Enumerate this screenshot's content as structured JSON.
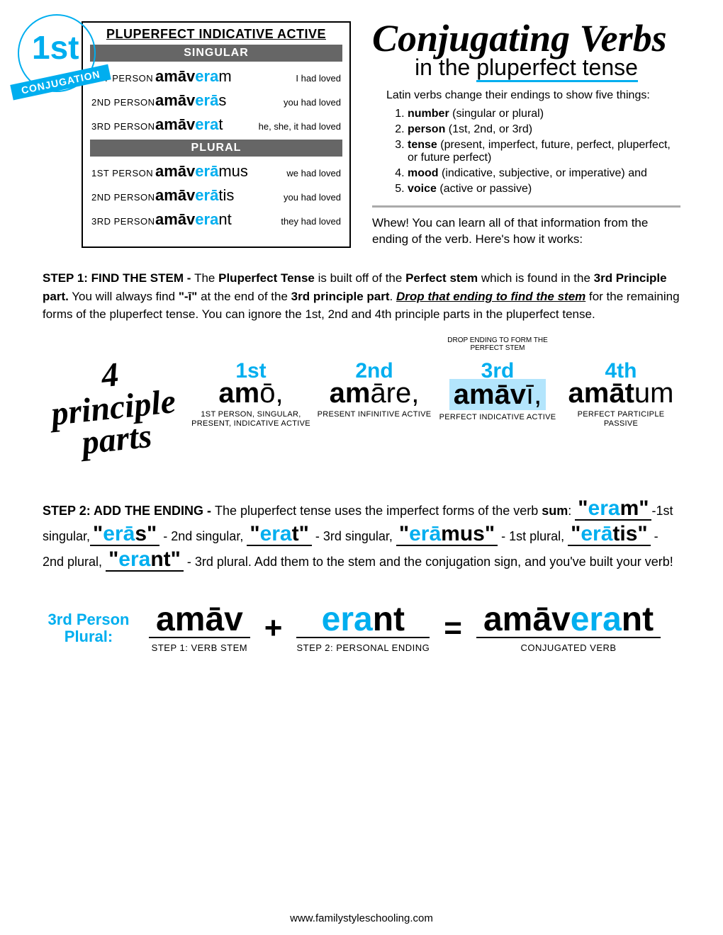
{
  "colors": {
    "accent": "#00aeef",
    "header_bg": "#666666",
    "highlight_bg": "#b3e5fc"
  },
  "badge": {
    "ord": "1st",
    "label": "CONJUGATION"
  },
  "table": {
    "title": "PLUPERFECT INDICATIVE ACTIVE",
    "singular_label": "SINGULAR",
    "plural_label": "PLURAL",
    "rows_singular": [
      {
        "person": "1ST PERSON",
        "stem": "amāv",
        "blue": "era",
        "end": "m",
        "trans": "I had loved"
      },
      {
        "person": "2ND PERSON",
        "stem": "amāv",
        "blue": "erā",
        "end": "s",
        "trans": "you had loved"
      },
      {
        "person": "3RD PERSON",
        "stem": "amāv",
        "blue": "era",
        "end": "t",
        "trans": "he, she, it had loved"
      }
    ],
    "rows_plural": [
      {
        "person": "1ST PERSON",
        "stem": "amāv",
        "blue": "erā",
        "end": "mus",
        "trans": "we had loved"
      },
      {
        "person": "2ND PERSON",
        "stem": "amāv",
        "blue": "erā",
        "end": "tis",
        "trans": "you had loved"
      },
      {
        "person": "3RD PERSON",
        "stem": "amāv",
        "blue": "era",
        "end": "nt",
        "trans": "they had loved"
      }
    ]
  },
  "header": {
    "title": "Conjugating Verbs",
    "subtitle_pre": "in the ",
    "subtitle_u": "pluperfect tense"
  },
  "intro": "Latin verbs change their endings to show five things:",
  "list": [
    {
      "b": "number",
      "rest": " (singular or plural)"
    },
    {
      "b": "person",
      "rest": " (1st, 2nd, or 3rd)"
    },
    {
      "b": "tense",
      "rest": " (present, imperfect, future, perfect, pluperfect, or future perfect)"
    },
    {
      "b": "mood",
      "rest": " (indicative, subjective, or imperative) and"
    },
    {
      "b": "voice",
      "rest": " (active or passive)"
    }
  ],
  "whew": "Whew!  You can learn all of that information from the ending of the verb.  Here's how it works:",
  "step1": {
    "label": "STEP 1:  FIND THE STEM - ",
    "text_a": "The ",
    "b1": "Pluperfect Tense",
    "text_b": " is built off of the ",
    "b2": "Perfect stem",
    "text_c": " which is found in the ",
    "b3": "3rd Principle part.",
    "text_d": " You will always find ",
    "b4": "\"-ī\"",
    "text_e": " at the end of the ",
    "b5": "3rd principle part",
    "text_f": ". ",
    "u1": "Drop that ending to find the stem",
    "text_g": " for the remaining forms of the pluperfect tense.  You can ignore the 1st, 2nd and 4th principle parts in the pluperfect tense."
  },
  "principle": {
    "heading": "4 principle parts",
    "drop_note": "DROP ENDING TO FORM THE PERFECT STEM",
    "parts": [
      {
        "ord": "1st",
        "stem": "am",
        "end": "ō,",
        "desc": "1ST PERSON, SINGULAR, PRESENT, INDICATIVE ACTIVE"
      },
      {
        "ord": "2nd",
        "stem": "am",
        "end": "āre,",
        "desc": "PRESENT INFINITIVE ACTIVE"
      },
      {
        "ord": "3rd",
        "stem": "amāv",
        "end": "ī,",
        "desc": "PERFECT INDICATIVE ACTIVE",
        "highlight": true
      },
      {
        "ord": "4th",
        "stem": "amāt",
        "end": "um",
        "desc": "PERFECT PARTICIPLE PASSIVE"
      }
    ]
  },
  "step2": {
    "label": "STEP 2:  ADD THE ENDING - ",
    "intro": "The pluperfect tense uses the imperfect forms of the verb ",
    "sum": "sum",
    "endings": [
      {
        "q1": "\"",
        "blue": "era",
        "black": "m",
        "q2": "\"",
        "desc": "-1st singular,"
      },
      {
        "q1": "\"",
        "blue": "erā",
        "black": "s",
        "q2": "\"",
        "desc": " - 2nd singular, "
      },
      {
        "q1": "\"",
        "blue": "era",
        "black": "t",
        "q2": "\"",
        "desc": " - 3rd singular, "
      },
      {
        "q1": "\"",
        "blue": "erā",
        "black": "mus",
        "q2": "\"",
        "desc": " - 1st plural, "
      },
      {
        "q1": "\"",
        "blue": "erā",
        "black": "tis",
        "q2": "\"",
        "desc": " - 2nd plural, "
      },
      {
        "q1": "\"",
        "blue": "era",
        "black": "nt",
        "q2": "\"",
        "desc": ""
      }
    ],
    "outro": " - 3rd plural.  Add them to the stem and the conjugation sign, and you've built your verb!"
  },
  "formula": {
    "label": "3rd Person Plural:",
    "stem": "amāv",
    "stem_desc": "STEP 1: VERB STEM",
    "plus": "+",
    "end_blue": "era",
    "end_black": "nt",
    "end_desc": "STEP 2: PERSONAL ENDING",
    "eq": "=",
    "result_stem": "amāv",
    "result_blue": "era",
    "result_end": "nt",
    "result_desc": "CONJUGATED VERB"
  },
  "footer": "www.familystyleschooling.com"
}
